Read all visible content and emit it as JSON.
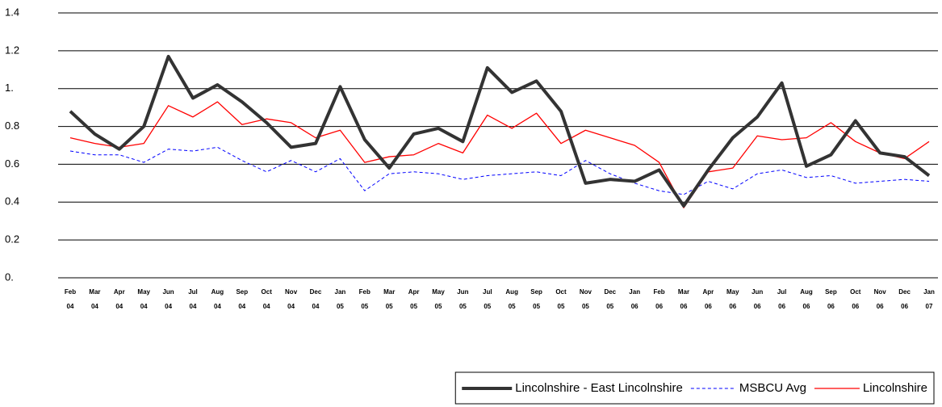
{
  "chart_data": {
    "type": "line",
    "categories": [
      "Feb 04",
      "Mar 04",
      "Apr 04",
      "May 04",
      "Jun 04",
      "Jul 04",
      "Aug 04",
      "Sep 04",
      "Oct 04",
      "Nov 04",
      "Dec 04",
      "Jan 05",
      "Feb 05",
      "Mar 05",
      "Apr 05",
      "May 05",
      "Jun 05",
      "Jul 05",
      "Aug 05",
      "Sep 05",
      "Oct 05",
      "Nov 05",
      "Dec 05",
      "Jan 06",
      "Feb 06",
      "Mar 06",
      "Apr 06",
      "May 06",
      "Jun 06",
      "Jul 06",
      "Aug 06",
      "Sep 06",
      "Oct 06",
      "Nov 06",
      "Dec 06",
      "Jan 07"
    ],
    "series": [
      {
        "name": "Lincolnshire - East Lincolnshire",
        "color": "#333333",
        "width": 4,
        "dashed": false,
        "values": [
          0.88,
          0.76,
          0.68,
          0.8,
          1.17,
          0.95,
          1.02,
          0.93,
          0.82,
          0.69,
          0.71,
          1.01,
          0.73,
          0.58,
          0.76,
          0.79,
          0.72,
          1.11,
          0.98,
          1.04,
          0.88,
          0.5,
          0.52,
          0.51,
          0.57,
          0.38,
          0.57,
          0.74,
          0.85,
          1.03,
          0.59,
          0.65,
          0.83,
          0.66,
          0.64,
          0.54
        ]
      },
      {
        "name": "MSBCU Avg",
        "color": "#0000ff",
        "width": 1,
        "dashed": true,
        "values": [
          0.67,
          0.65,
          0.65,
          0.61,
          0.68,
          0.67,
          0.69,
          0.62,
          0.56,
          0.62,
          0.56,
          0.63,
          0.46,
          0.55,
          0.56,
          0.55,
          0.52,
          0.54,
          0.55,
          0.56,
          0.54,
          0.62,
          0.55,
          0.5,
          0.46,
          0.44,
          0.51,
          0.47,
          0.55,
          0.57,
          0.53,
          0.54,
          0.5,
          0.51,
          0.52,
          0.51
        ]
      },
      {
        "name": "Lincolnshire",
        "color": "#ff0000",
        "width": 1.3,
        "dashed": false,
        "values": [
          0.74,
          0.71,
          0.69,
          0.71,
          0.91,
          0.85,
          0.93,
          0.81,
          0.84,
          0.82,
          0.74,
          0.78,
          0.61,
          0.64,
          0.65,
          0.71,
          0.66,
          0.86,
          0.79,
          0.87,
          0.71,
          0.78,
          0.74,
          0.7,
          0.61,
          0.37,
          0.56,
          0.58,
          0.75,
          0.73,
          0.74,
          0.82,
          0.72,
          0.66,
          0.63,
          0.72
        ]
      }
    ],
    "ylim": [
      0,
      1.4
    ],
    "yticks": [
      {
        "value": 0,
        "label": "0."
      },
      0.2,
      0.4,
      0.6,
      0.8,
      {
        "value": 1,
        "label": "1."
      },
      1.2,
      1.4
    ],
    "grid": true,
    "legend": "bottom-right"
  }
}
